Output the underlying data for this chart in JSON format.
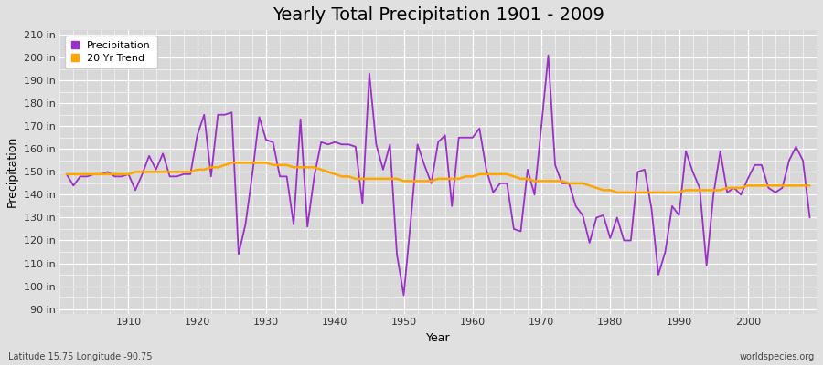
{
  "title": "Yearly Total Precipitation 1901 - 2009",
  "xlabel": "Year",
  "ylabel": "Precipitation",
  "subtitle": "Latitude 15.75 Longitude -90.75",
  "watermark": "worldspecies.org",
  "years": [
    1901,
    1902,
    1903,
    1904,
    1905,
    1906,
    1907,
    1908,
    1909,
    1910,
    1911,
    1912,
    1913,
    1914,
    1915,
    1916,
    1917,
    1918,
    1919,
    1920,
    1921,
    1922,
    1923,
    1924,
    1925,
    1926,
    1927,
    1928,
    1929,
    1930,
    1931,
    1932,
    1933,
    1934,
    1935,
    1936,
    1937,
    1938,
    1939,
    1940,
    1941,
    1942,
    1943,
    1944,
    1945,
    1946,
    1947,
    1948,
    1949,
    1950,
    1951,
    1952,
    1953,
    1954,
    1955,
    1956,
    1957,
    1958,
    1959,
    1960,
    1961,
    1962,
    1963,
    1964,
    1965,
    1966,
    1967,
    1968,
    1969,
    1970,
    1971,
    1972,
    1973,
    1974,
    1975,
    1976,
    1977,
    1978,
    1979,
    1980,
    1981,
    1982,
    1983,
    1984,
    1985,
    1986,
    1987,
    1988,
    1989,
    1990,
    1991,
    1992,
    1993,
    1994,
    1995,
    1996,
    1997,
    1998,
    1999,
    2000,
    2001,
    2002,
    2003,
    2004,
    2005,
    2006,
    2007,
    2008,
    2009
  ],
  "precipitation": [
    149,
    144,
    148,
    148,
    149,
    149,
    150,
    148,
    148,
    149,
    142,
    149,
    157,
    151,
    158,
    148,
    148,
    149,
    149,
    166,
    175,
    148,
    175,
    175,
    176,
    114,
    127,
    149,
    174,
    164,
    163,
    148,
    148,
    127,
    173,
    126,
    148,
    163,
    162,
    163,
    162,
    162,
    161,
    136,
    193,
    162,
    151,
    162,
    114,
    96,
    128,
    162,
    153,
    145,
    163,
    166,
    135,
    165,
    165,
    165,
    169,
    151,
    141,
    145,
    145,
    125,
    124,
    151,
    140,
    170,
    201,
    153,
    145,
    145,
    135,
    131,
    119,
    130,
    131,
    121,
    130,
    120,
    120,
    150,
    151,
    134,
    105,
    115,
    135,
    131,
    159,
    150,
    143,
    109,
    140,
    159,
    141,
    143,
    140,
    147,
    153,
    153,
    143,
    141,
    143,
    155,
    161,
    155,
    130
  ],
  "trend": [
    149,
    149,
    149,
    149,
    149,
    149,
    149,
    149,
    149,
    149,
    150,
    150,
    150,
    150,
    150,
    150,
    150,
    150,
    150,
    151,
    151,
    152,
    152,
    153,
    154,
    154,
    154,
    154,
    154,
    154,
    153,
    153,
    153,
    152,
    152,
    152,
    152,
    151,
    150,
    149,
    148,
    148,
    147,
    147,
    147,
    147,
    147,
    147,
    147,
    146,
    146,
    146,
    146,
    146,
    147,
    147,
    147,
    147,
    148,
    148,
    149,
    149,
    149,
    149,
    149,
    148,
    147,
    147,
    146,
    146,
    146,
    146,
    146,
    145,
    145,
    145,
    144,
    143,
    142,
    142,
    141,
    141,
    141,
    141,
    141,
    141,
    141,
    141,
    141,
    141,
    142,
    142,
    142,
    142,
    142,
    142,
    143,
    143,
    143,
    144,
    144,
    144,
    144,
    144,
    144,
    144,
    144,
    144,
    144
  ],
  "precip_color": "#9B30C8",
  "trend_color": "#FFA500",
  "bg_color": "#E0E0E0",
  "plot_bg_color": "#D8D8D8",
  "ylim": [
    88,
    212
  ],
  "yticks": [
    90,
    100,
    110,
    120,
    130,
    140,
    150,
    160,
    170,
    180,
    190,
    200,
    210
  ],
  "xlim": [
    1900,
    2010
  ],
  "xticks": [
    1910,
    1920,
    1930,
    1940,
    1950,
    1960,
    1970,
    1980,
    1990,
    2000
  ],
  "title_fontsize": 14,
  "axis_label_fontsize": 9,
  "tick_fontsize": 8,
  "legend_fontsize": 8,
  "precip_linewidth": 1.3,
  "trend_linewidth": 1.8
}
